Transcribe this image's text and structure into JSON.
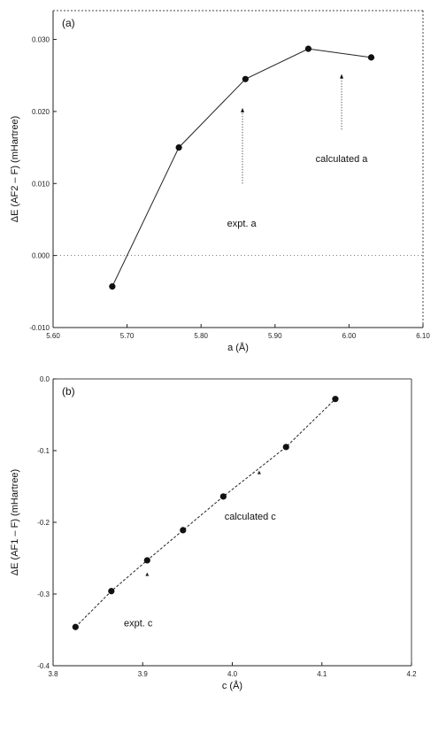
{
  "chart_data": [
    {
      "type": "line",
      "panel_label": "(a)",
      "xlabel": "a (Å)",
      "ylabel": "ΔE (AF2 – F) (mHartree)",
      "xlim": [
        5.6,
        6.1
      ],
      "ylim": [
        -0.01,
        0.034
      ],
      "x_ticks": [
        "5.60",
        "5.70",
        "5.80",
        "5.90",
        "6.00",
        "6.10"
      ],
      "x_tick_values": [
        5.6,
        5.7,
        5.8,
        5.9,
        6.0,
        6.1
      ],
      "y_ticks": [
        "-0.010",
        "0.000",
        "0.010",
        "0.020",
        "0.030"
      ],
      "y_tick_values": [
        -0.01,
        0.0,
        0.01,
        0.02,
        0.03
      ],
      "zero_line": true,
      "series": [
        {
          "x": [
            5.68,
            5.77,
            5.86,
            5.945,
            6.03
          ],
          "y": [
            -0.0043,
            0.015,
            0.0245,
            0.0287,
            0.0275
          ]
        }
      ],
      "annotations": [
        {
          "text": "expt. a",
          "arrow_x": 5.856,
          "arrow_from_y": 0.01,
          "arrow_to_y": 0.0205,
          "text_x": 5.855,
          "text_y": 0.004
        },
        {
          "text": "calculated a",
          "arrow_x": 5.99,
          "arrow_from_y": 0.0175,
          "arrow_to_y": 0.0252,
          "text_x": 5.99,
          "text_y": 0.013
        }
      ]
    },
    {
      "type": "line",
      "panel_label": "(b)",
      "xlabel": "c (Å)",
      "ylabel": "ΔE (AF1 – F) (mHartree)",
      "xlim": [
        3.8,
        4.2
      ],
      "ylim": [
        -0.4,
        0.0
      ],
      "x_ticks": [
        "3.8",
        "3.9",
        "4.0",
        "4.1",
        "4.2"
      ],
      "x_tick_values": [
        3.8,
        3.9,
        4.0,
        4.1,
        4.2
      ],
      "y_ticks": [
        "-0.4",
        "-0.3",
        "-0.2",
        "-0.1",
        "0.0"
      ],
      "y_tick_values": [
        -0.4,
        -0.3,
        -0.2,
        -0.1,
        0.0
      ],
      "series": [
        {
          "x": [
            3.825,
            3.865,
            3.905,
            3.945,
            3.99,
            4.06,
            4.115
          ],
          "y": [
            -0.346,
            -0.296,
            -0.253,
            -0.211,
            -0.164,
            -0.095,
            -0.028
          ]
        }
      ],
      "markers": [
        {
          "x": 3.905,
          "y": -0.273
        },
        {
          "x": 4.03,
          "y": -0.131
        }
      ],
      "annotations": [
        {
          "text": "expt. c",
          "text_x": 3.895,
          "text_y": -0.345
        },
        {
          "text": "calculated c",
          "text_x": 4.02,
          "text_y": -0.196
        }
      ]
    }
  ]
}
